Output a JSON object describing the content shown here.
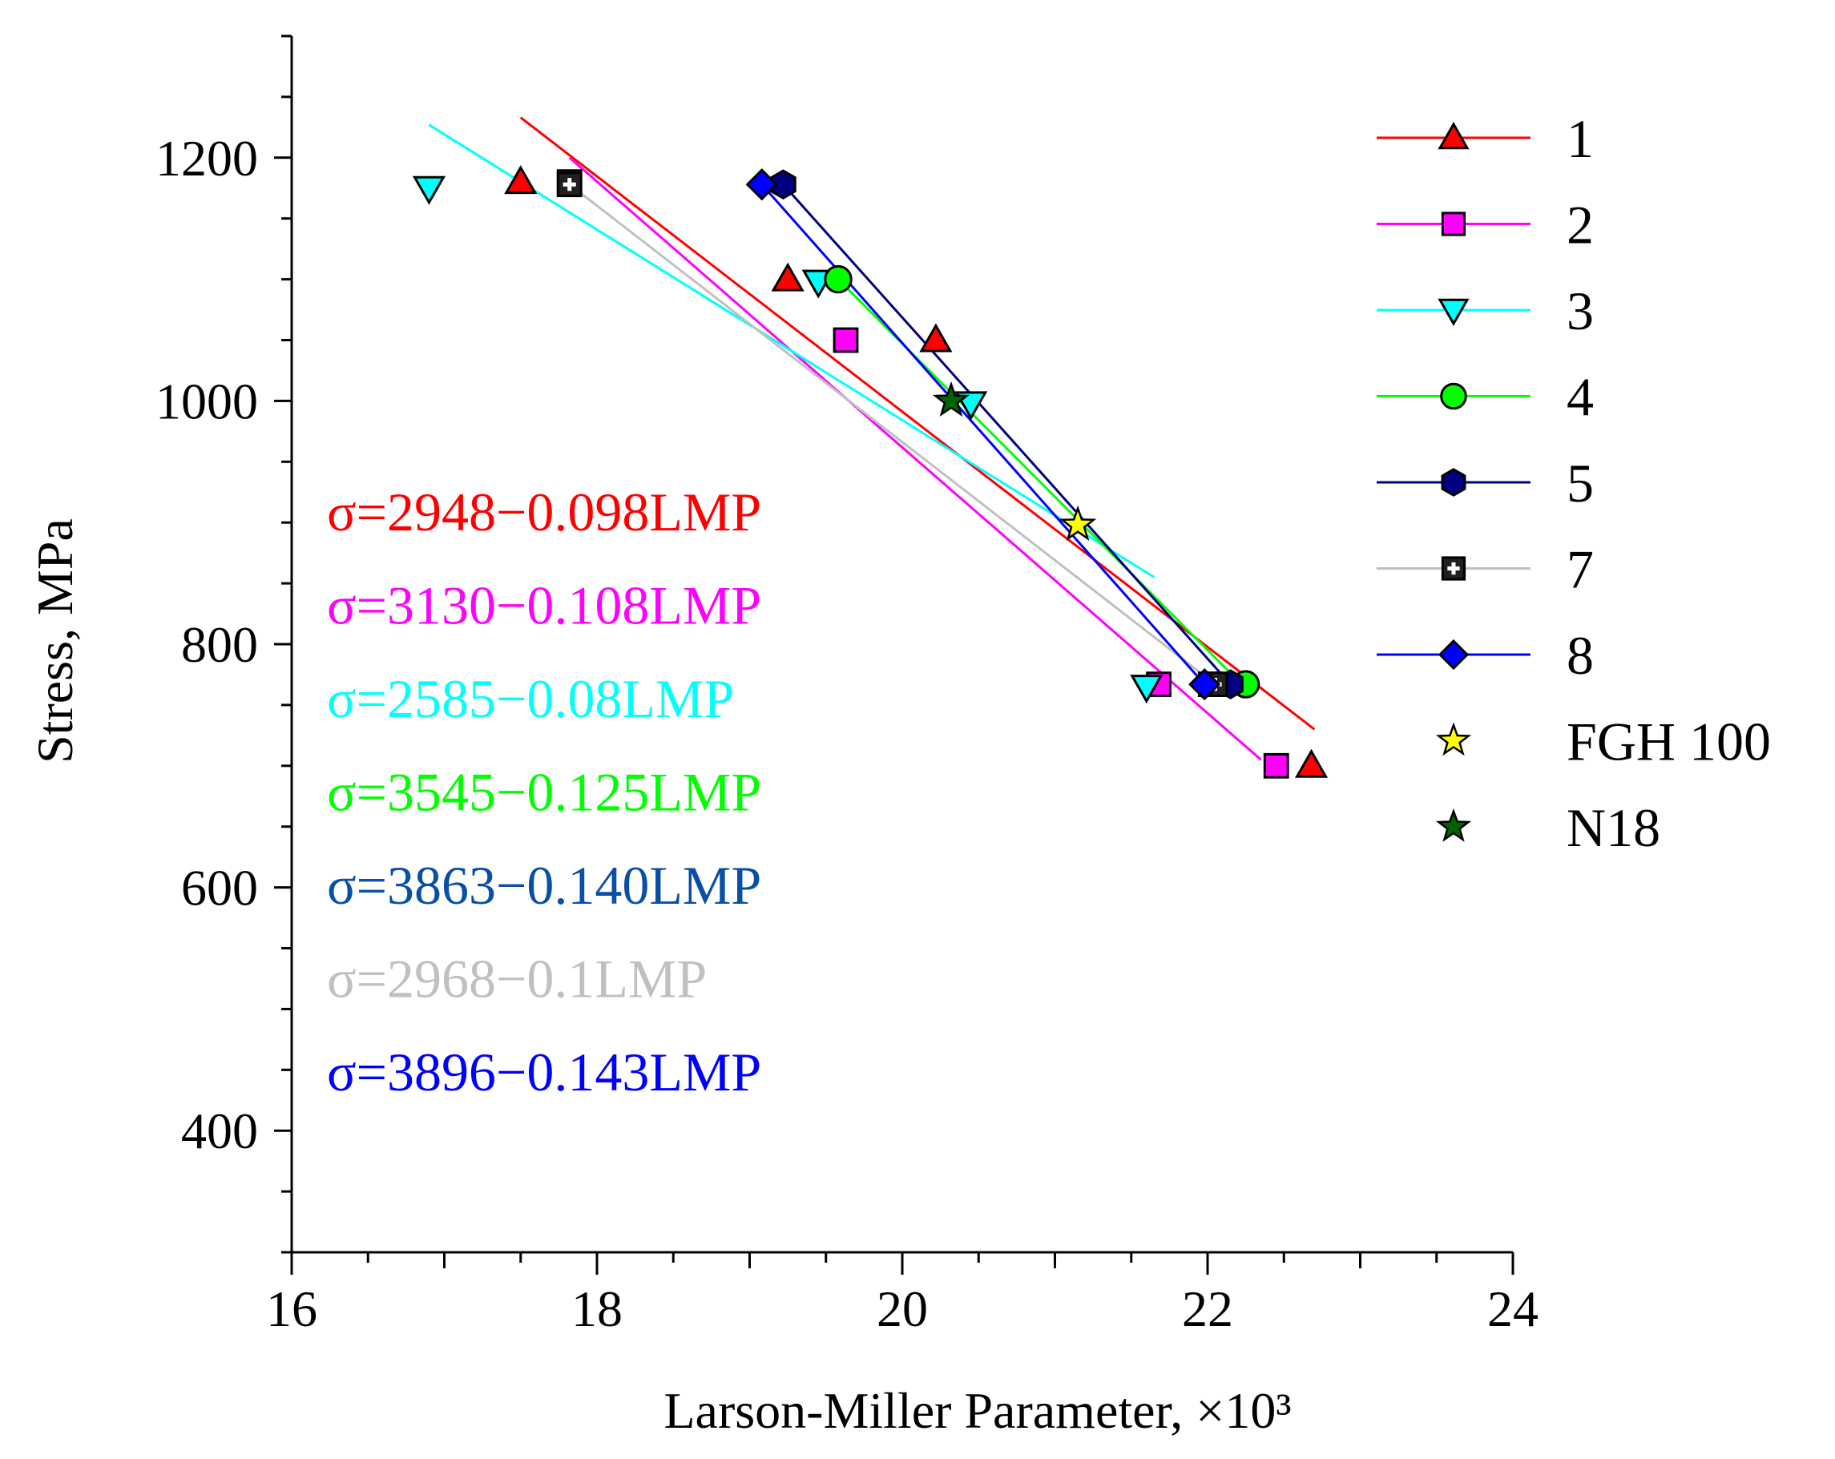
{
  "chart_data": {
    "type": "scatter",
    "xlabel": "Larson-Miller Parameter, ×10³",
    "ylabel": "Stress, MPa",
    "xlim": [
      16,
      24
    ],
    "ylim": [
      300,
      1300
    ],
    "x_ticks": [
      16,
      18,
      20,
      22,
      24
    ],
    "x_tick_labels": [
      "16",
      "18",
      "20",
      "22",
      "24"
    ],
    "y_ticks": [
      400,
      600,
      800,
      1000,
      1200
    ],
    "y_tick_labels": [
      "400",
      "600",
      "800",
      "1000",
      "1200"
    ],
    "legend_position": "right",
    "series": [
      {
        "name": "1",
        "color": "#ff0000",
        "marker": "triangle",
        "x": [
          17.5,
          19.25,
          20.22,
          22.68
        ],
        "y": [
          1180,
          1100,
          1050,
          700
        ],
        "fit_line": {
          "x": [
            17.5,
            22.7
          ],
          "y": [
            1233,
            730
          ]
        }
      },
      {
        "name": "2",
        "color": "#ff00ff",
        "marker": "square",
        "x": [
          17.82,
          19.63,
          21.68,
          22.02,
          22.45
        ],
        "y": [
          1180,
          1050,
          767,
          767,
          700
        ],
        "fit_line": {
          "x": [
            17.82,
            22.35
          ],
          "y": [
            1200,
            705
          ]
        }
      },
      {
        "name": "3",
        "color": "#00ffff",
        "marker": "triangle-down",
        "x": [
          16.9,
          19.45,
          20.45,
          21.6
        ],
        "y": [
          1175,
          1098,
          998,
          765
        ],
        "fit_line": {
          "x": [
            16.9,
            21.65
          ],
          "y": [
            1227,
            855
          ]
        }
      },
      {
        "name": "4",
        "color": "#00ff00",
        "marker": "circle",
        "x": [
          19.58,
          22.25
        ],
        "y": [
          1100,
          767
        ],
        "fit_line": {
          "x": [
            19.58,
            22.2
          ],
          "y": [
            1100,
            770
          ]
        }
      },
      {
        "name": "5",
        "color": "#000080",
        "marker": "hexagon",
        "x": [
          19.22,
          22.15
        ],
        "y": [
          1178,
          767
        ],
        "fit_line": {
          "x": [
            19.22,
            22.15
          ],
          "y": [
            1178,
            767
          ]
        }
      },
      {
        "name": "7",
        "color": "#c0c0c0",
        "marker": "plus-square",
        "x": [
          17.82,
          22.05
        ],
        "y": [
          1178,
          767
        ],
        "fit_line": {
          "x": [
            17.82,
            22.05
          ],
          "y": [
            1178,
            767
          ]
        }
      },
      {
        "name": "8",
        "color": "#0000ff",
        "marker": "diamond",
        "x": [
          19.08,
          21.98
        ],
        "y": [
          1178,
          767
        ],
        "fit_line": {
          "x": [
            19.08,
            21.98
          ],
          "y": [
            1178,
            767
          ]
        }
      },
      {
        "name": "FGH 100",
        "color": "#ffff00",
        "marker": "star",
        "x": [
          21.15
        ],
        "y": [
          898
        ]
      },
      {
        "name": "N18",
        "color": "#006400",
        "marker": "star",
        "x": [
          20.32
        ],
        "y": [
          1000
        ]
      }
    ],
    "annotations": [
      {
        "text": "σ=2948−0.098LMP",
        "color": "#ff0000"
      },
      {
        "text": "σ=3130−0.108LMP",
        "color": "#ff00ff"
      },
      {
        "text": "σ=2585−0.08LMP",
        "color": "#00ffff"
      },
      {
        "text": "σ=3545−0.125LMP",
        "color": "#00ff00"
      },
      {
        "text": "σ=3863−0.140LMP",
        "color": "#0a4fa6"
      },
      {
        "text": "σ=2968−0.1LMP",
        "color": "#c0c0c0"
      },
      {
        "text": "σ=3896−0.143LMP",
        "color": "#0000ff"
      }
    ]
  }
}
